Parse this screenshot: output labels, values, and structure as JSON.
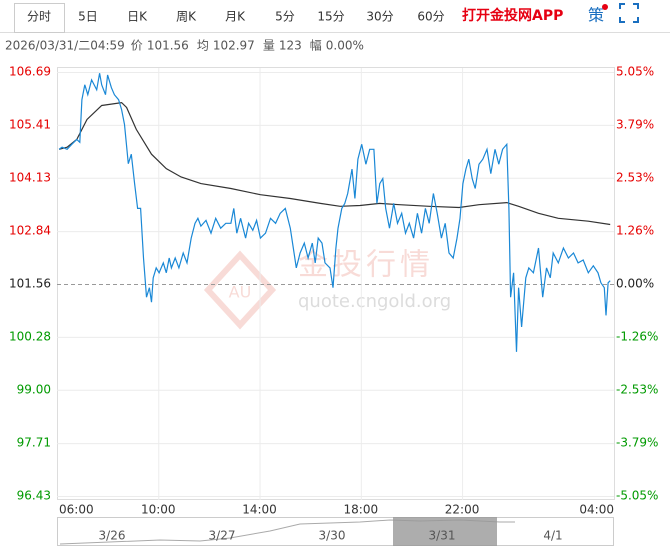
{
  "tabs": [
    "分时",
    "5日",
    "日K",
    "周K",
    "月K",
    "5分",
    "15分",
    "30分",
    "60分"
  ],
  "app_link": "打开金投网APP",
  "strategy": "策",
  "info": {
    "time": "2026/03/31/二04:59",
    "items": [
      {
        "label": "价",
        "value": "101.56"
      },
      {
        "label": "均",
        "value": "102.97"
      },
      {
        "label": "量",
        "value": "123"
      },
      {
        "label": "幅",
        "value": "0.00%"
      }
    ]
  },
  "watermark": {
    "logo": "AU",
    "title": "金投行情",
    "url": "quote.cngold.org"
  },
  "navigator": {
    "dates": [
      "3/26",
      "3/27",
      "3/30",
      "3/31",
      "4/1"
    ]
  },
  "chart_data": {
    "type": "line",
    "xlim": [
      "06:00",
      "04:00"
    ],
    "xticks": [
      "06:00",
      "10:00",
      "14:00",
      "18:00",
      "22:00",
      "04:00"
    ],
    "ylim": [
      96.43,
      106.69
    ],
    "yticks": [
      106.69,
      105.41,
      104.13,
      102.84,
      101.56,
      100.28,
      {
        "value": 99,
        "label": "99.00"
      },
      97.71,
      96.43
    ],
    "y2lim": [
      -5.05,
      5.05
    ],
    "y2ticks": [
      {
        "value": 5.05,
        "label": "5.05%"
      },
      {
        "value": 3.79,
        "label": "3.79%"
      },
      {
        "value": 2.53,
        "label": "2.53%"
      },
      {
        "value": 1.26,
        "label": "1.26%"
      },
      {
        "value": 0,
        "label": "0.00%"
      },
      {
        "value": -1.26,
        "label": "-1.26%"
      },
      {
        "value": -2.53,
        "label": "-2.53%"
      },
      {
        "value": -3.79,
        "label": "-3.79%"
      },
      {
        "value": -5.05,
        "label": "-5.05%"
      }
    ],
    "grid": true,
    "up_color": "#e60000",
    "down_color": "#009a00",
    "flat_color": "#222222",
    "series": [
      {
        "color": "#1a88d6",
        "x": [
          "06:05",
          "06:12",
          "06:24",
          "06:35",
          "06:47",
          "06:54",
          "06:59",
          "07:06",
          "07:13",
          "07:22",
          "07:34",
          "07:41",
          "07:46",
          "07:55",
          "08:00",
          "08:09",
          "08:16",
          "08:26",
          "08:33",
          "08:40",
          "08:49",
          "08:56",
          "09:04",
          "09:11",
          "09:18",
          "09:25",
          "09:32",
          "09:39",
          "09:44",
          "09:48",
          "09:55",
          "10:02",
          "10:12",
          "10:19",
          "10:26",
          "10:31",
          "10:40",
          "10:49",
          "10:59",
          "11:08",
          "11:18",
          "11:27",
          "11:34",
          "11:41",
          "11:53",
          "12:05",
          "12:16",
          "12:28",
          "12:40",
          "12:52",
          "12:59",
          "13:06",
          "13:15",
          "13:27",
          "13:34",
          "13:44",
          "13:53",
          "14:02",
          "14:14",
          "14:26",
          "14:38",
          "14:49",
          "15:01",
          "15:13",
          "15:20",
          "15:27",
          "15:36",
          "15:46",
          "15:55",
          "16:05",
          "16:12",
          "16:19",
          "16:28",
          "16:35",
          "16:47",
          "16:54",
          "17:01",
          "17:06",
          "17:15",
          "17:22",
          "17:29",
          "17:39",
          "17:46",
          "17:53",
          "18:02",
          "18:12",
          "18:21",
          "18:31",
          "18:38",
          "18:45",
          "18:52",
          "18:59",
          "19:08",
          "19:18",
          "19:27",
          "19:37",
          "19:46",
          "19:55",
          "20:05",
          "20:14",
          "20:24",
          "20:33",
          "20:42",
          "20:52",
          "21:01",
          "21:11",
          "21:20",
          "21:29",
          "21:39",
          "21:48",
          "21:55",
          "22:02",
          "22:09",
          "22:16",
          "22:24",
          "22:31",
          "22:40",
          "22:49",
          "22:59",
          "23:08",
          "23:18",
          "23:27",
          "23:36",
          "23:46",
          "23:51",
          "23:55",
          "00:02",
          "00:09",
          "00:14",
          "00:21",
          "00:31",
          "00:38",
          "00:49",
          "01:01",
          "01:11",
          "01:20",
          "01:29",
          "01:36",
          "01:48",
          "02:00",
          "02:12",
          "02:24",
          "02:35",
          "02:47",
          "02:59",
          "03:11",
          "03:22",
          "03:29",
          "03:37",
          "03:41",
          "03:46",
          "03:51"
        ],
        "values": [
          104.82,
          104.87,
          104.82,
          104.94,
          105.06,
          104.99,
          106.02,
          106.38,
          106.14,
          106.5,
          106.26,
          106.66,
          106.38,
          106.14,
          106.62,
          106.31,
          106.14,
          106.02,
          105.78,
          105.42,
          104.47,
          104.7,
          103.99,
          103.39,
          103.39,
          102.19,
          101.24,
          101.47,
          101.12,
          101.71,
          101.95,
          101.83,
          102.07,
          101.83,
          102.19,
          101.95,
          102.19,
          101.95,
          102.31,
          102.07,
          102.67,
          103.03,
          103.15,
          102.96,
          103.1,
          102.79,
          103.15,
          102.91,
          103.03,
          103.03,
          103.39,
          102.79,
          103.15,
          102.67,
          103.03,
          102.86,
          103.1,
          102.67,
          102.79,
          103.15,
          103.03,
          103.27,
          103.39,
          102.91,
          102.43,
          101.95,
          102.31,
          102.55,
          102.19,
          102.55,
          102.07,
          102.67,
          102.55,
          102.07,
          101.95,
          101.47,
          102.43,
          102.91,
          103.39,
          103.51,
          103.75,
          104.34,
          103.63,
          104.58,
          104.94,
          104.46,
          104.82,
          104.82,
          103.51,
          103.99,
          104.11,
          103.39,
          102.91,
          103.51,
          103.03,
          103.27,
          102.79,
          103.03,
          102.67,
          103.27,
          102.79,
          103.39,
          103.03,
          103.75,
          103.27,
          102.67,
          103.03,
          102.31,
          102.19,
          102.67,
          103.15,
          103.99,
          104.34,
          104.58,
          104.11,
          103.87,
          104.46,
          104.58,
          104.82,
          104.23,
          104.82,
          104.46,
          104.82,
          104.94,
          103.39,
          101.24,
          101.83,
          99.92,
          101.47,
          100.52,
          101.71,
          101.95,
          101.83,
          102.43,
          101.24,
          101.95,
          101.71,
          102.31,
          102.07,
          102.43,
          102.19,
          102.31,
          102.07,
          102.14,
          101.83,
          102,
          101.83,
          101.59,
          101.47,
          100.8,
          101.59,
          101.64
        ]
      },
      {
        "color": "#333333",
        "x": [
          "06:05",
          "06:24",
          "06:47",
          "07:11",
          "07:46",
          "08:33",
          "08:45",
          "09:08",
          "09:44",
          "10:19",
          "10:54",
          "11:41",
          "12:52",
          "14:02",
          "15:13",
          "16:24",
          "17:11",
          "17:58",
          "18:45",
          "19:32",
          "20:42",
          "21:53",
          "22:40",
          "23:46",
          "00:14",
          "01:01",
          "01:48",
          "02:59",
          "03:51"
        ],
        "values": [
          104.82,
          104.87,
          105.06,
          105.54,
          105.88,
          105.95,
          105.83,
          105.3,
          104.7,
          104.35,
          104.15,
          103.99,
          103.87,
          103.72,
          103.63,
          103.51,
          103.44,
          103.46,
          103.51,
          103.48,
          103.44,
          103.41,
          103.48,
          103.53,
          103.44,
          103.27,
          103.15,
          103.08,
          103
        ]
      }
    ]
  }
}
